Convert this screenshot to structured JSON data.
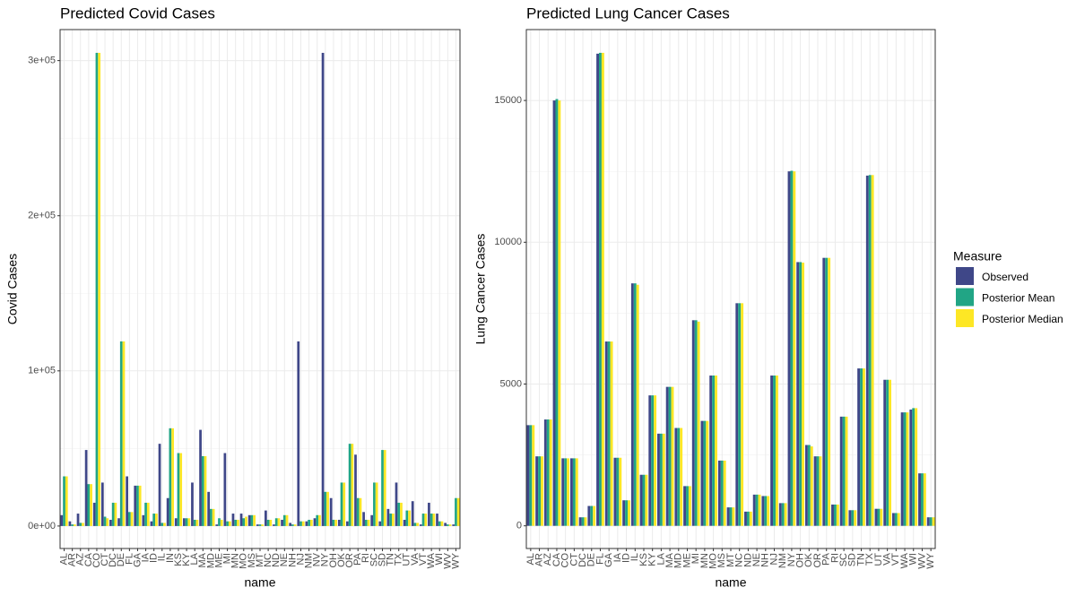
{
  "chart_data": [
    {
      "type": "bar",
      "title": "Predicted Covid Cases",
      "x_label": "name",
      "y_label": "Covid Cases",
      "categories": [
        "AL",
        "AR",
        "AZ",
        "CA",
        "CO",
        "CT",
        "DC",
        "DE",
        "FL",
        "GA",
        "IA",
        "ID",
        "IL",
        "IN",
        "KS",
        "KY",
        "LA",
        "MA",
        "MD",
        "ME",
        "MI",
        "MN",
        "MO",
        "MS",
        "MT",
        "NC",
        "ND",
        "NE",
        "NH",
        "NJ",
        "NM",
        "NV",
        "NY",
        "OH",
        "OK",
        "OR",
        "PA",
        "RI",
        "SC",
        "SD",
        "TN",
        "TX",
        "UT",
        "VA",
        "VT",
        "WA",
        "WI",
        "WV",
        "WY"
      ],
      "series": [
        {
          "name": "Observed",
          "color": "#3f4788",
          "values": [
            7000,
            3000,
            8000,
            49000,
            15000,
            28000,
            4000,
            5000,
            32000,
            26000,
            7000,
            3000,
            53000,
            18000,
            5000,
            5000,
            28000,
            62000,
            22000,
            1000,
            47000,
            8000,
            8000,
            7000,
            1000,
            10000,
            1000,
            4000,
            2000,
            119000,
            3000,
            5000,
            305000,
            18000,
            4000,
            3000,
            46000,
            9000,
            7000,
            3000,
            11000,
            28000,
            4000,
            16000,
            1000,
            15000,
            8000,
            2000,
            1000
          ]
        },
        {
          "name": "Posterior Mean",
          "color": "#21a585",
          "values": [
            32000,
            1000,
            2000,
            27000,
            305000,
            6000,
            15000,
            119000,
            9000,
            26000,
            15000,
            8000,
            2000,
            63000,
            47000,
            5000,
            4000,
            45000,
            11000,
            5000,
            3000,
            4000,
            5000,
            7000,
            1000,
            4000,
            5000,
            7000,
            1000,
            3000,
            4000,
            7000,
            22000,
            4000,
            28000,
            53000,
            18000,
            4000,
            28000,
            49000,
            8000,
            15000,
            10000,
            2000,
            8000,
            8000,
            3000,
            1000,
            18000
          ]
        },
        {
          "name": "Posterior Median",
          "color": "#fde725",
          "values": [
            32000,
            1000,
            2000,
            27000,
            305000,
            5000,
            15000,
            119000,
            9000,
            26000,
            15000,
            8000,
            2000,
            63000,
            47000,
            5000,
            4000,
            45000,
            11000,
            4000,
            3000,
            4000,
            6000,
            7000,
            1000,
            4000,
            5000,
            7000,
            1000,
            3000,
            4000,
            7000,
            22000,
            4000,
            28000,
            53000,
            18000,
            4000,
            28000,
            49000,
            8000,
            15000,
            10000,
            2000,
            8000,
            8000,
            3000,
            1000,
            18000
          ]
        }
      ],
      "ylim": [
        -14500,
        320000
      ],
      "yticks": [
        {
          "value": 0,
          "label": "0e+00"
        },
        {
          "value": 100000,
          "label": "1e+05"
        },
        {
          "value": 200000,
          "label": "2e+05"
        },
        {
          "value": 300000,
          "label": "3e+05"
        }
      ],
      "grid": true
    },
    {
      "type": "bar",
      "title": "Predicted Lung Cancer Cases",
      "x_label": "name",
      "y_label": "Lung Cancer Cases",
      "categories": [
        "AL",
        "AR",
        "AZ",
        "CA",
        "CO",
        "CT",
        "DC",
        "DE",
        "FL",
        "GA",
        "IA",
        "ID",
        "IL",
        "KS",
        "KY",
        "LA",
        "MA",
        "MD",
        "ME",
        "MI",
        "MN",
        "MO",
        "MS",
        "MT",
        "NC",
        "ND",
        "NE",
        "NH",
        "NJ",
        "NM",
        "NY",
        "OH",
        "OK",
        "OR",
        "PA",
        "RI",
        "SC",
        "SD",
        "TN",
        "TX",
        "UT",
        "VA",
        "VT",
        "WA",
        "WI",
        "WV",
        "WY"
      ],
      "series": [
        {
          "name": "Observed",
          "color": "#3f4788",
          "values": [
            3550,
            2450,
            3750,
            15000,
            2380,
            2380,
            300,
            700,
            16650,
            6500,
            2400,
            900,
            8550,
            1800,
            4600,
            3250,
            4900,
            3450,
            1400,
            7250,
            3700,
            5300,
            2300,
            650,
            7850,
            500,
            1100,
            1050,
            5300,
            800,
            12500,
            9300,
            2850,
            2450,
            9450,
            750,
            3850,
            550,
            5550,
            12350,
            600,
            5150,
            450,
            4000,
            4100,
            1850,
            300
          ]
        },
        {
          "name": "Posterior Mean",
          "color": "#21a585",
          "values": [
            3550,
            2450,
            3750,
            15050,
            2380,
            2380,
            300,
            700,
            16680,
            6500,
            2400,
            900,
            8550,
            1800,
            4600,
            3250,
            4900,
            3450,
            1400,
            7250,
            3700,
            5300,
            2300,
            650,
            7850,
            500,
            1100,
            1050,
            5300,
            800,
            12520,
            9300,
            2850,
            2450,
            9450,
            750,
            3850,
            550,
            5550,
            12370,
            600,
            5150,
            450,
            4000,
            4150,
            1850,
            300
          ]
        },
        {
          "name": "Posterior Median",
          "color": "#fde725",
          "values": [
            3550,
            2450,
            3750,
            15000,
            2380,
            2380,
            300,
            700,
            16680,
            6500,
            2400,
            900,
            8500,
            1800,
            4600,
            3250,
            4900,
            3450,
            1400,
            7200,
            3700,
            5300,
            2300,
            650,
            7850,
            500,
            1100,
            1050,
            5300,
            800,
            12500,
            9280,
            2800,
            2450,
            9450,
            750,
            3850,
            550,
            5550,
            12370,
            600,
            5150,
            450,
            4000,
            4150,
            1850,
            300
          ]
        }
      ],
      "ylim": [
        -800,
        17500
      ],
      "yticks": [
        0,
        5000,
        10000,
        15000
      ],
      "grid": true,
      "legend_title": "Measure"
    }
  ]
}
